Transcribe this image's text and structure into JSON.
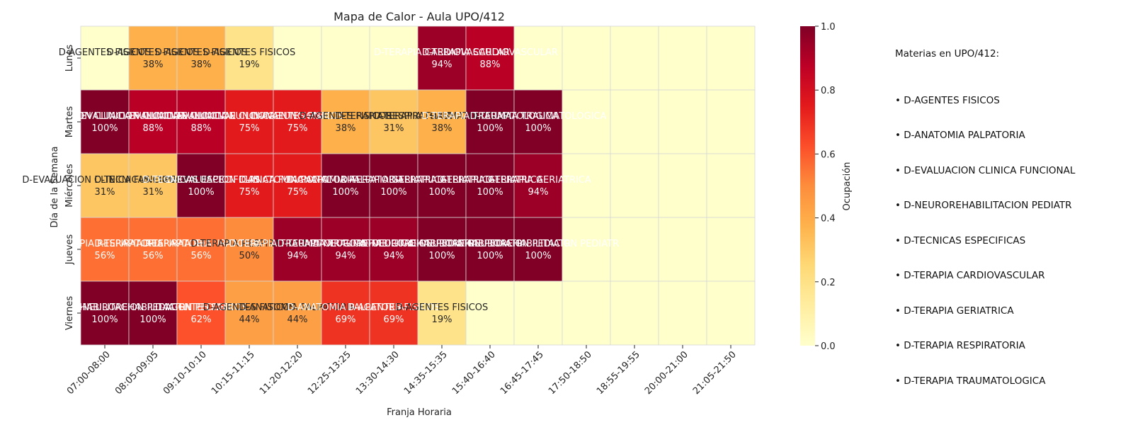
{
  "chart_data": {
    "type": "heatmap",
    "title": "Mapa de Calor - Aula UPO/412",
    "xlabel": "Franja Horaria",
    "ylabel": "Día de la Semana",
    "colorbar_label": "Ocupación",
    "colorbar_range": [
      0.0,
      1.0
    ],
    "colorbar_ticks": [
      "0.0",
      "0.2",
      "0.4",
      "0.6",
      "0.8",
      "1.0"
    ],
    "colormap": "YlOrRd",
    "x_categories": [
      "07:00-08:00",
      "08:05-09:05",
      "09:10-10:10",
      "10:15-11:15",
      "11:20-12:20",
      "12:25-13:25",
      "13:30-14:30",
      "14:35-15:35",
      "15:40-16:40",
      "16:45-17:45",
      "17:50-18:50",
      "18:55-19:55",
      "20:00-21:00",
      "21:05-21:50"
    ],
    "y_categories": [
      "Lunes",
      "Martes",
      "Miércoles",
      "Jueves",
      "Viernes"
    ],
    "values": [
      [
        0.0,
        0.38,
        0.38,
        0.19,
        0.0,
        0.0,
        0.0,
        0.94,
        0.88,
        0.0,
        0.0,
        0.0,
        0.0,
        0.0
      ],
      [
        1.0,
        0.88,
        0.88,
        0.75,
        0.75,
        0.38,
        0.31,
        0.38,
        1.0,
        1.0,
        0.0,
        0.0,
        0.0,
        0.0
      ],
      [
        0.31,
        0.31,
        1.0,
        0.75,
        0.75,
        1.0,
        1.0,
        1.0,
        1.0,
        0.94,
        0.0,
        0.0,
        0.0,
        0.0
      ],
      [
        0.56,
        0.56,
        0.56,
        0.5,
        0.94,
        0.94,
        0.94,
        1.0,
        1.0,
        1.0,
        0.0,
        0.0,
        0.0,
        0.0
      ],
      [
        1.0,
        1.0,
        0.62,
        0.44,
        0.44,
        0.69,
        0.69,
        0.19,
        0.0,
        0.0,
        0.0,
        0.0,
        0.0,
        0.0
      ]
    ],
    "cell_labels": [
      [
        {
          "subject": "D-AGENTES FISICOS",
          "pct": ""
        },
        {
          "subject": "D-AGENTES FISICOS",
          "pct": "38%"
        },
        {
          "subject": "D-AGENTES FISICOS",
          "pct": "38%"
        },
        {
          "subject": "D-AGENTES FISICOS",
          "pct": "19%"
        },
        {
          "subject": "",
          "pct": ""
        },
        {
          "subject": "",
          "pct": ""
        },
        {
          "subject": "",
          "pct": ""
        },
        {
          "subject": "D-TERAPIA CARDIOVASCULAR",
          "pct": "94%"
        },
        {
          "subject": "D-TERAPIA CARDIOVASCULAR",
          "pct": "88%"
        },
        {
          "subject": "",
          "pct": ""
        },
        {
          "subject": "",
          "pct": ""
        },
        {
          "subject": "",
          "pct": ""
        },
        {
          "subject": "",
          "pct": ""
        },
        {
          "subject": "",
          "pct": ""
        }
      ],
      [
        {
          "subject": "D-EVALUACION CLINICA FUNCIONAL",
          "pct": "100%"
        },
        {
          "subject": "D-EVALUACION CLINICA FUNCIONAL",
          "pct": "88%"
        },
        {
          "subject": "D-EVALUACION CLINICA FUNCIONAL",
          "pct": "88%"
        },
        {
          "subject": "D-EVALUACION CLINICA FUNCIONAL",
          "pct": "75%"
        },
        {
          "subject": "D-AGENTES FISICOS",
          "pct": "75%"
        },
        {
          "subject": "D-AGENTES FISICOS",
          "pct": "38%"
        },
        {
          "subject": "D-TERAPIA RESPIRATORIA",
          "pct": "31%"
        },
        {
          "subject": "D-TERAPIA TRAUMATOLOGICA",
          "pct": "38%"
        },
        {
          "subject": "D-TERAPIA TRAUMATOLOGICA",
          "pct": "100%"
        },
        {
          "subject": "D-TERAPIA TRAUMATOLOGICA",
          "pct": "100%"
        },
        {
          "subject": "",
          "pct": ""
        },
        {
          "subject": "",
          "pct": ""
        },
        {
          "subject": "",
          "pct": ""
        },
        {
          "subject": "",
          "pct": ""
        }
      ],
      [
        {
          "subject": "D-EVALUACION CLINICA FUNCIONAL",
          "pct": "31%"
        },
        {
          "subject": "D-TECNICAS ESPECIFICAS",
          "pct": "31%"
        },
        {
          "subject": "D-TECNICAS ESPECIFICAS",
          "pct": "100%"
        },
        {
          "subject": "D-EVALUACION CLINICA FUNCIONAL",
          "pct": "75%"
        },
        {
          "subject": "D-ANATOMIA PALPATORIA",
          "pct": "75%"
        },
        {
          "subject": "D-ANATOMIA PALPATORIA",
          "pct": "100%"
        },
        {
          "subject": "D-TERAPIA GERIATRICA",
          "pct": "100%"
        },
        {
          "subject": "D-TERAPIA GERIATRICA",
          "pct": "100%"
        },
        {
          "subject": "D-TERAPIA GERIATRICA",
          "pct": "100%"
        },
        {
          "subject": "D-TERAPIA GERIATRICA",
          "pct": "94%"
        },
        {
          "subject": "",
          "pct": ""
        },
        {
          "subject": "",
          "pct": ""
        },
        {
          "subject": "",
          "pct": ""
        },
        {
          "subject": "",
          "pct": ""
        }
      ],
      [
        {
          "subject": "D-TERAPIA RESPIRATORIA",
          "pct": "56%"
        },
        {
          "subject": "D-TERAPIA RESPIRATORIA",
          "pct": "56%"
        },
        {
          "subject": "D-TERAPIA RESPIRATORIA",
          "pct": "56%"
        },
        {
          "subject": "D-TERAPIA RESPIRATORIA",
          "pct": "50%"
        },
        {
          "subject": "D-TERAPIA TRAUMATOLOGICA",
          "pct": "94%"
        },
        {
          "subject": "D-TERAPIA TRAUMATOLOGICA",
          "pct": "94%"
        },
        {
          "subject": "D-NEUROREHABILITACION PEDIATR",
          "pct": "94%"
        },
        {
          "subject": "D-NEUROREHABILITACION PEDIATR",
          "pct": "100%"
        },
        {
          "subject": "D-NEUROREHABILITACION PEDIATR",
          "pct": "100%"
        },
        {
          "subject": "D-NEUROREHABILITACION PEDIATR",
          "pct": "100%"
        },
        {
          "subject": "",
          "pct": ""
        },
        {
          "subject": "",
          "pct": ""
        },
        {
          "subject": "",
          "pct": ""
        },
        {
          "subject": "",
          "pct": ""
        }
      ],
      [
        {
          "subject": "D-NEUROREHABILITACION PEDIATR",
          "pct": "100%"
        },
        {
          "subject": "D-NEUROREHABILITACION PEDIATR",
          "pct": "100%"
        },
        {
          "subject": "D-AGENTES FISICOS",
          "pct": "62%"
        },
        {
          "subject": "D-AGENTES FISICOS",
          "pct": "44%"
        },
        {
          "subject": "D-ANATOMIA PALPATORIA",
          "pct": "44%"
        },
        {
          "subject": "D-ANATOMIA PALPATORIA",
          "pct": "69%"
        },
        {
          "subject": "D-AGENTES FISICOS",
          "pct": "69%"
        },
        {
          "subject": "D-AGENTES FISICOS",
          "pct": "19%"
        },
        {
          "subject": "",
          "pct": ""
        },
        {
          "subject": "",
          "pct": ""
        },
        {
          "subject": "",
          "pct": ""
        },
        {
          "subject": "",
          "pct": ""
        },
        {
          "subject": "",
          "pct": ""
        },
        {
          "subject": "",
          "pct": ""
        }
      ]
    ]
  },
  "legend": {
    "title": "Materias en UPO/412:",
    "items": [
      "• D-AGENTES FISICOS",
      "• D-ANATOMIA PALPATORIA",
      "• D-EVALUACION CLINICA FUNCIONAL",
      "• D-NEUROREHABILITACION PEDIATR",
      "• D-TECNICAS ESPECIFICAS",
      "• D-TERAPIA CARDIOVASCULAR",
      "• D-TERAPIA GERIATRICA",
      "• D-TERAPIA RESPIRATORIA",
      "• D-TERAPIA TRAUMATOLOGICA"
    ]
  }
}
